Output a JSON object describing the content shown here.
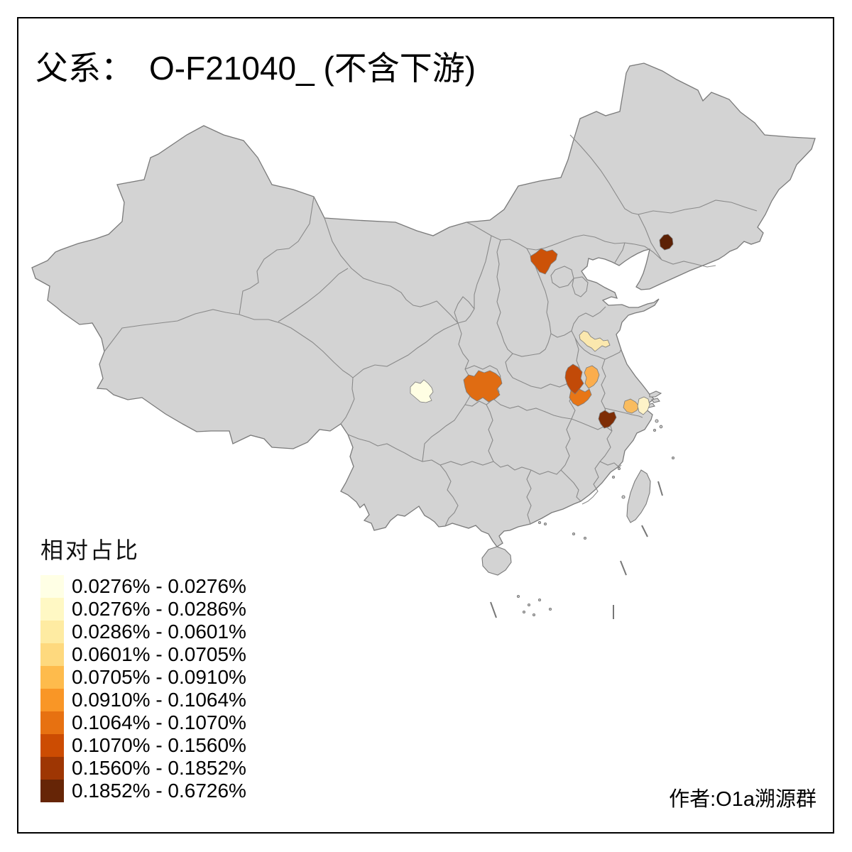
{
  "title": {
    "prefix": "父系：",
    "main": "O-F21040_ (不含下游)"
  },
  "legend": {
    "title": "相对占比",
    "items": [
      {
        "range": "0.0276% - 0.0276%",
        "color": "#FFFFE5"
      },
      {
        "range": "0.0276% - 0.0286%",
        "color": "#FFF8C4"
      },
      {
        "range": "0.0286% - 0.0601%",
        "color": "#FEEBA2"
      },
      {
        "range": "0.0601% - 0.0705%",
        "color": "#FED97E"
      },
      {
        "range": "0.0705% - 0.0910%",
        "color": "#FEBB4C"
      },
      {
        "range": "0.0910% - 0.1064%",
        "color": "#F99626"
      },
      {
        "range": "0.1064% - 0.1070%",
        "color": "#E77111"
      },
      {
        "range": "0.1070% - 0.1560%",
        "color": "#CC4C02"
      },
      {
        "range": "0.1560% - 0.1852%",
        "color": "#9E3603"
      },
      {
        "range": "0.1852% - 0.6726%",
        "color": "#662506"
      }
    ]
  },
  "attribution": "作者:O1a溯源群",
  "map": {
    "land_color": "#D3D3D3",
    "border_color": "#7A7A7A",
    "sea_color": "#FFFFFF",
    "regions": [
      {
        "name": "sichuan-region",
        "color": "#FFFEE3"
      },
      {
        "name": "hubei-region",
        "color": "#E06C12"
      },
      {
        "name": "north-jiangsu-region",
        "color": "#FBE8AE"
      },
      {
        "name": "anhui-east-region",
        "color": "#FBAD4D"
      },
      {
        "name": "anhui-west-region",
        "color": "#C24A08"
      },
      {
        "name": "anhui-south-lower-region",
        "color": "#E87616"
      },
      {
        "name": "south-anhui-region",
        "color": "#7E2D06"
      },
      {
        "name": "north-zhejiang-region",
        "color": "#F9BC5F"
      },
      {
        "name": "shanghai-adjacent-region",
        "color": "#FEF3C8"
      },
      {
        "name": "hebei-region",
        "color": "#CC5208"
      },
      {
        "name": "liaoning-region",
        "color": "#5C2105"
      }
    ]
  }
}
